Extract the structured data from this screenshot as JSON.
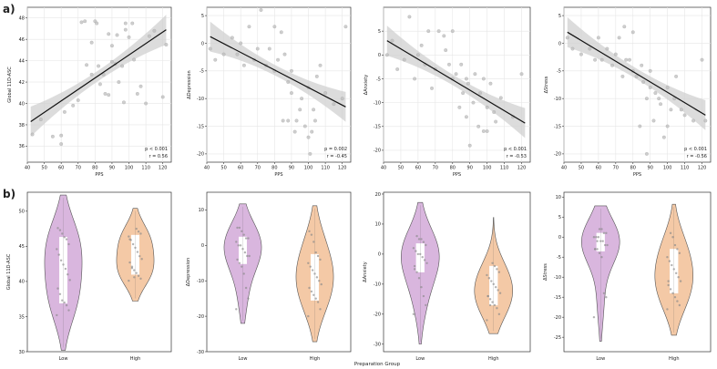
{
  "figure": {
    "panel_labels": [
      "a)",
      "b)"
    ],
    "shared_xlabel_bottom": "Preparation Group"
  },
  "chart_data": [
    {
      "type": "scatter",
      "xlabel": "PPS",
      "ylabel": "Global 11D-ASC",
      "xlim": [
        40,
        125
      ],
      "ylim": [
        34.5,
        49
      ],
      "xticks": [
        40,
        50,
        60,
        70,
        80,
        90,
        100,
        110,
        120
      ],
      "yticks": [
        36,
        38,
        40,
        42,
        44,
        46,
        48
      ],
      "grid": true,
      "stats": {
        "p": "p < 0.001",
        "r": "r = 0.56"
      },
      "fit": {
        "x": [
          42,
          122
        ],
        "y": [
          38.3,
          46.9
        ]
      },
      "points": [
        [
          43,
          37.1
        ],
        [
          48,
          38.5
        ],
        [
          55,
          36.9
        ],
        [
          60,
          37.0
        ],
        [
          60,
          36.2
        ],
        [
          62,
          39.2
        ],
        [
          67,
          39.8
        ],
        [
          70,
          40.3
        ],
        [
          72,
          47.6
        ],
        [
          74,
          47.7
        ],
        [
          75,
          43.6
        ],
        [
          78,
          45.7
        ],
        [
          78,
          42.7
        ],
        [
          80,
          47.7
        ],
        [
          81,
          47.5
        ],
        [
          82,
          43.5
        ],
        [
          83,
          41.8
        ],
        [
          85,
          42.7
        ],
        [
          86,
          40.9
        ],
        [
          88,
          40.8
        ],
        [
          88,
          46.5
        ],
        [
          90,
          43.9
        ],
        [
          90,
          45.4
        ],
        [
          92,
          43.7
        ],
        [
          93,
          46.4
        ],
        [
          94,
          42.0
        ],
        [
          96,
          43.5
        ],
        [
          97,
          40.1
        ],
        [
          98,
          47.5
        ],
        [
          98,
          46.9
        ],
        [
          100,
          46.2
        ],
        [
          102,
          47.5
        ],
        [
          103,
          44.1
        ],
        [
          105,
          40.9
        ],
        [
          107,
          41.6
        ],
        [
          110,
          40.0
        ],
        [
          112,
          46.3
        ],
        [
          115,
          46.8
        ],
        [
          120,
          40.6
        ],
        [
          122,
          45.5
        ]
      ]
    },
    {
      "type": "scatter",
      "xlabel": "PPS",
      "ylabel": "ΔDepression",
      "xlim": [
        40,
        125
      ],
      "ylim": [
        -21.5,
        6.5
      ],
      "xticks": [
        40,
        50,
        60,
        70,
        80,
        90,
        100,
        110,
        120
      ],
      "yticks": [
        -20,
        -15,
        -10,
        -5,
        0,
        5
      ],
      "grid": true,
      "stats": {
        "p": "p = 0.002",
        "r": "r = -0.45"
      },
      "fit": {
        "x": [
          42,
          122
        ],
        "y": [
          1.2,
          -11.5
        ]
      },
      "points": [
        [
          42,
          -1
        ],
        [
          45,
          -3
        ],
        [
          50,
          -2
        ],
        [
          55,
          1
        ],
        [
          58,
          -2
        ],
        [
          60,
          0
        ],
        [
          62,
          -4
        ],
        [
          65,
          3
        ],
        [
          68,
          -3
        ],
        [
          70,
          -1
        ],
        [
          72,
          6
        ],
        [
          75,
          -4
        ],
        [
          77,
          -1
        ],
        [
          80,
          -5
        ],
        [
          80,
          3
        ],
        [
          82,
          -3
        ],
        [
          84,
          2
        ],
        [
          85,
          -14
        ],
        [
          86,
          -2
        ],
        [
          88,
          -14
        ],
        [
          88,
          -7
        ],
        [
          90,
          -9
        ],
        [
          90,
          -5
        ],
        [
          92,
          -16
        ],
        [
          93,
          -14
        ],
        [
          95,
          -12
        ],
        [
          96,
          -10
        ],
        [
          98,
          -15
        ],
        [
          100,
          -17
        ],
        [
          100,
          -8
        ],
        [
          101,
          -20
        ],
        [
          102,
          -16
        ],
        [
          103,
          -12
        ],
        [
          104,
          -14
        ],
        [
          105,
          -6
        ],
        [
          107,
          -4
        ],
        [
          110,
          -9
        ],
        [
          115,
          -11
        ],
        [
          120,
          -10
        ],
        [
          122,
          3
        ]
      ]
    },
    {
      "type": "scatter",
      "xlabel": "PPS",
      "ylabel": "ΔAnxiety",
      "xlim": [
        40,
        125
      ],
      "ylim": [
        -22.5,
        10
      ],
      "xticks": [
        40,
        50,
        60,
        70,
        80,
        90,
        100,
        110,
        120
      ],
      "yticks": [
        -20,
        -15,
        -10,
        -5,
        0,
        5
      ],
      "grid": true,
      "stats": {
        "p": "p < 0.001",
        "r": "r = -0.53"
      },
      "fit": {
        "x": [
          42,
          122
        ],
        "y": [
          3.0,
          -14.3
        ]
      },
      "points": [
        [
          42,
          0
        ],
        [
          45,
          3
        ],
        [
          48,
          -3
        ],
        [
          52,
          -1
        ],
        [
          55,
          8
        ],
        [
          58,
          -5
        ],
        [
          60,
          0
        ],
        [
          62,
          2
        ],
        [
          64,
          -2
        ],
        [
          66,
          5
        ],
        [
          68,
          -7
        ],
        [
          70,
          -3
        ],
        [
          72,
          5
        ],
        [
          75,
          4
        ],
        [
          76,
          1
        ],
        [
          78,
          -2
        ],
        [
          80,
          5
        ],
        [
          80,
          -5
        ],
        [
          82,
          -4
        ],
        [
          84,
          -11
        ],
        [
          85,
          -2
        ],
        [
          86,
          -8
        ],
        [
          88,
          -5
        ],
        [
          88,
          -13
        ],
        [
          89,
          -6
        ],
        [
          90,
          -19
        ],
        [
          92,
          -10
        ],
        [
          93,
          -4
        ],
        [
          95,
          -15
        ],
        [
          96,
          -8
        ],
        [
          98,
          -5
        ],
        [
          98,
          -16
        ],
        [
          100,
          -11
        ],
        [
          100,
          -16
        ],
        [
          102,
          -6
        ],
        [
          104,
          -12
        ],
        [
          105,
          -14
        ],
        [
          108,
          -9
        ],
        [
          115,
          -13
        ],
        [
          120,
          -4
        ]
      ]
    },
    {
      "type": "scatter",
      "xlabel": "PPS",
      "ylabel": "ΔStress",
      "xlim": [
        40,
        125
      ],
      "ylim": [
        -21.5,
        6.5
      ],
      "xticks": [
        40,
        50,
        60,
        70,
        80,
        90,
        100,
        110,
        120
      ],
      "yticks": [
        -20,
        -15,
        -10,
        -5,
        0,
        5
      ],
      "grid": true,
      "stats": {
        "p": "p < 0.001",
        "r": "r = -0.56"
      },
      "fit": {
        "x": [
          42,
          122
        ],
        "y": [
          2.0,
          -13.0
        ]
      },
      "points": [
        [
          42,
          1
        ],
        [
          45,
          -1
        ],
        [
          50,
          -2
        ],
        [
          55,
          -1
        ],
        [
          58,
          -3
        ],
        [
          60,
          1
        ],
        [
          62,
          -3
        ],
        [
          65,
          -1
        ],
        [
          68,
          -4
        ],
        [
          70,
          -2
        ],
        [
          72,
          1
        ],
        [
          74,
          -6
        ],
        [
          75,
          3
        ],
        [
          76,
          -3
        ],
        [
          78,
          -3
        ],
        [
          80,
          -5
        ],
        [
          80,
          2
        ],
        [
          82,
          -6
        ],
        [
          84,
          -15
        ],
        [
          85,
          -4
        ],
        [
          86,
          -7
        ],
        [
          88,
          -10
        ],
        [
          88,
          -20
        ],
        [
          90,
          -5
        ],
        [
          90,
          -8
        ],
        [
          92,
          -14
        ],
        [
          93,
          -9
        ],
        [
          95,
          -10
        ],
        [
          96,
          -11
        ],
        [
          98,
          -17
        ],
        [
          100,
          -8
        ],
        [
          100,
          -15
        ],
        [
          102,
          -12
        ],
        [
          104,
          -10
        ],
        [
          105,
          -6
        ],
        [
          108,
          -12
        ],
        [
          110,
          -13
        ],
        [
          115,
          -14
        ],
        [
          120,
          -3
        ],
        [
          122,
          -14
        ]
      ]
    },
    {
      "type": "violin",
      "xlabel": "",
      "ylabel": "Global 11D-ASC",
      "categories": [
        "Low",
        "High"
      ],
      "ylim": [
        30,
        52.7
      ],
      "yticks": [
        30,
        35,
        40,
        45,
        50
      ],
      "groups": [
        {
          "name": "Low",
          "color": "#d9b6de",
          "range": [
            30.2,
            52.3
          ],
          "q1": 36.9,
          "median": 42.4,
          "q3": 46.3,
          "points": [
            35.2,
            35.9,
            36.6,
            37.0,
            37.3,
            38.2,
            39.0,
            40.2,
            41.0,
            41.8,
            42.4,
            43.0,
            43.8,
            44.6,
            45.3,
            46.0,
            46.3,
            46.8,
            47.3,
            47.6
          ]
        },
        {
          "name": "High",
          "color": "#f4c9a6",
          "range": [
            37.2,
            50.4
          ],
          "q1": 41.0,
          "median": 43.2,
          "q3": 46.6,
          "points": [
            40.1,
            40.4,
            40.8,
            41.2,
            41.6,
            42.1,
            42.7,
            43.2,
            43.6,
            44.2,
            44.8,
            45.3,
            45.9,
            46.4,
            46.8,
            47.1,
            47.5,
            40.6,
            41.9,
            46.0
          ]
        }
      ]
    },
    {
      "type": "violin",
      "xlabel": "",
      "ylabel": "ΔDepression",
      "categories": [
        "Low",
        "High"
      ],
      "ylim": [
        -30,
        15
      ],
      "yticks": [
        -30,
        -20,
        -10,
        0,
        10
      ],
      "groups": [
        {
          "name": "Low",
          "color": "#d9b6de",
          "range": [
            -22,
            11.7
          ],
          "q1": -5.2,
          "median": -2.0,
          "q3": 2.4,
          "points": [
            -18,
            -15,
            -12,
            -8,
            -6,
            -5,
            -4,
            -3,
            -3,
            -2,
            -1,
            0,
            0,
            1,
            2,
            2,
            3,
            4,
            5,
            5
          ]
        },
        {
          "name": "High",
          "color": "#f4c9a6",
          "range": [
            -27.2,
            11.2
          ],
          "q1": -15.5,
          "median": -11.0,
          "q3": -2.5,
          "points": [
            -20,
            -18,
            -16,
            -15,
            -14,
            -13,
            -12,
            -11,
            -10,
            -9,
            -8,
            -7,
            -6,
            -5,
            -4,
            -3,
            -2,
            1,
            3,
            4
          ]
        }
      ]
    },
    {
      "type": "violin",
      "xlabel": "",
      "ylabel": "ΔAnxiety",
      "categories": [
        "Low",
        "High"
      ],
      "ylim": [
        -32.5,
        20.6
      ],
      "yticks": [
        -30,
        -20,
        -10,
        0,
        10,
        20
      ],
      "groups": [
        {
          "name": "Low",
          "color": "#d9b6de",
          "range": [
            -30,
            17.2
          ],
          "q1": -6.0,
          "median": -1.0,
          "q3": 3.5,
          "points": [
            -20,
            -17,
            -14,
            -11,
            -8,
            -6,
            -5,
            -3,
            -2,
            -1,
            0,
            0,
            1,
            2,
            3,
            4,
            5,
            5,
            6,
            -4
          ]
        },
        {
          "name": "High",
          "color": "#f4c9a6",
          "range": [
            -26.5,
            12.2
          ],
          "q1": -17.0,
          "median": -10.0,
          "q3": -4.0,
          "points": [
            -22,
            -20,
            -18,
            -17,
            -16,
            -15,
            -14,
            -13,
            -12,
            -11,
            -10,
            -9,
            -8,
            -7,
            -6,
            -5,
            -4,
            -3,
            -17,
            -14
          ]
        }
      ]
    },
    {
      "type": "violin",
      "xlabel": "",
      "ylabel": "ΔStress",
      "categories": [
        "Low",
        "High"
      ],
      "ylim": [
        -28.6,
        11.2
      ],
      "yticks": [
        -25,
        -20,
        -15,
        -10,
        -5,
        0,
        5,
        10
      ],
      "groups": [
        {
          "name": "Low",
          "color": "#d9b6de",
          "range": [
            -26,
            7.8
          ],
          "q1": -3.5,
          "median": -1.0,
          "q3": 1.0,
          "points": [
            -20,
            -15,
            -14,
            -5,
            -4,
            -3,
            -3,
            -2,
            -2,
            -1,
            -1,
            0,
            0,
            0,
            1,
            1,
            2,
            2,
            -1,
            -3
          ]
        },
        {
          "name": "High",
          "color": "#f4c9a6",
          "range": [
            -24.5,
            8.2
          ],
          "q1": -14.0,
          "median": -9.5,
          "q3": -3.0,
          "points": [
            -18,
            -17,
            -16,
            -15,
            -14,
            -13,
            -12,
            -11,
            -10,
            -9,
            -8,
            -7,
            -6,
            -5,
            -4,
            -3,
            -2,
            0,
            1,
            -11
          ]
        }
      ]
    }
  ]
}
